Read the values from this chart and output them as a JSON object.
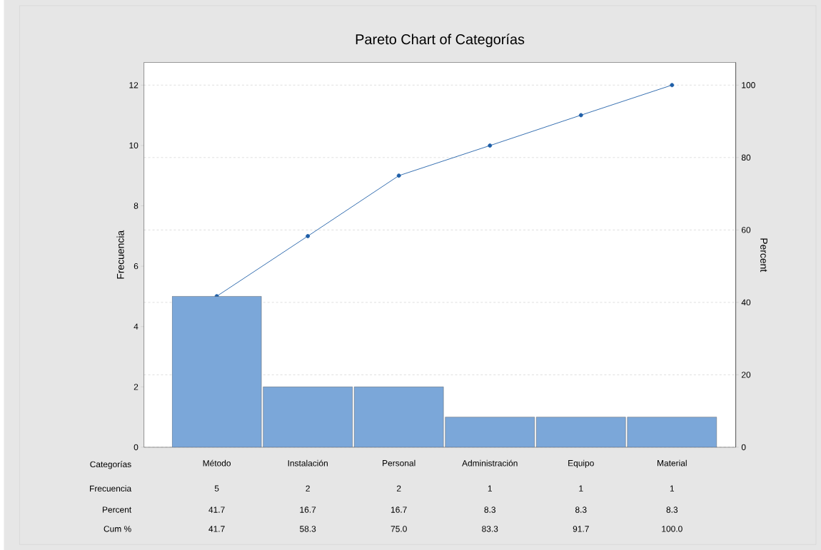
{
  "chart_data": {
    "type": "bar",
    "title": "Pareto Chart of Categorías",
    "xlabel": "Categorías",
    "ylabel": "Frecuencia",
    "y2label": "Percent",
    "categories": [
      "Método",
      "Instalación",
      "Personal",
      "Administración",
      "Equipo",
      "Material"
    ],
    "series": [
      {
        "color": "#7ba7d9",
        "values": [
          5,
          2,
          2,
          1,
          1,
          1
        ],
        "value_labels": [
          "5",
          "2",
          "2",
          "1",
          "1",
          "1"
        ]
      },
      {
        "type": "line",
        "axis": "y2",
        "color": "#1f5fa8",
        "values": [
          41.7,
          58.3,
          75.0,
          83.3,
          91.7,
          100.0
        ],
        "value_labels": [
          "41.7",
          "58.3",
          "75.0",
          "83.3",
          "91.7",
          "100.0"
        ],
        "marker": "circle",
        "line_style": "solid"
      }
    ],
    "annotations": [
      "Frecuencia",
      "Percent",
      "Cum %",
      "41.7",
      "16.7",
      "16.7",
      "8.3",
      "8.3",
      "8.3"
    ],
    "ylim": [
      0,
      12.75
    ],
    "yticks": [
      0,
      2,
      4,
      6,
      8,
      10,
      12
    ],
    "y2lim": [
      0,
      106.25
    ],
    "y2ticks": [
      0,
      20,
      40,
      60,
      80,
      100
    ],
    "grid": "y2"
  }
}
